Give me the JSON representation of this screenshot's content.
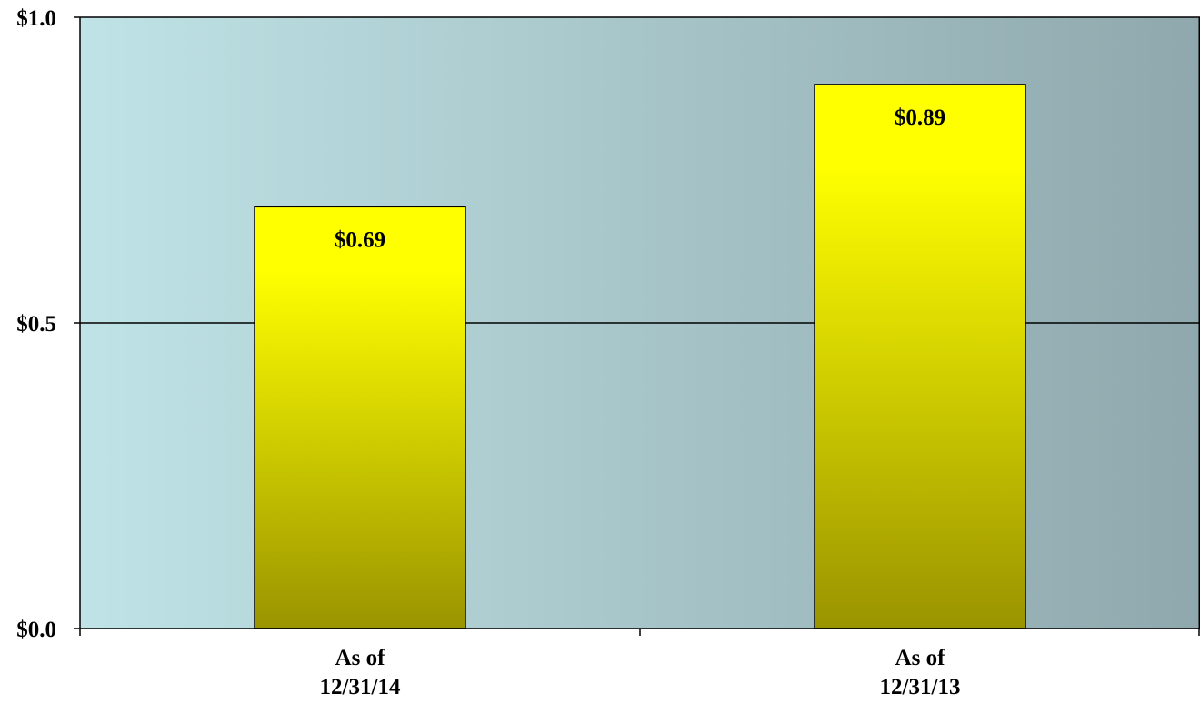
{
  "chart_data": {
    "type": "bar",
    "title": "",
    "xlabel": "",
    "ylabel": "",
    "categories": [
      [
        "As of",
        "12/31/14"
      ],
      [
        "As of",
        "12/31/13"
      ]
    ],
    "values": [
      0.69,
      0.89
    ],
    "data_labels": [
      "$0.69",
      "$0.89"
    ],
    "ylim": [
      0,
      1.0
    ],
    "y_ticks": [
      {
        "value": 0.0,
        "label": "$0.0"
      },
      {
        "value": 0.5,
        "label": "$0.5"
      },
      {
        "value": 1.0,
        "label": "$1.0"
      }
    ],
    "gridlines": true,
    "legend": "none",
    "colors": {
      "bar_top": "#ffff00",
      "bar_bottom": "#9a9400",
      "plot_bg_left": "#bfe3e6",
      "plot_bg_right": "#8fa8ad",
      "axis": "#000000"
    }
  }
}
